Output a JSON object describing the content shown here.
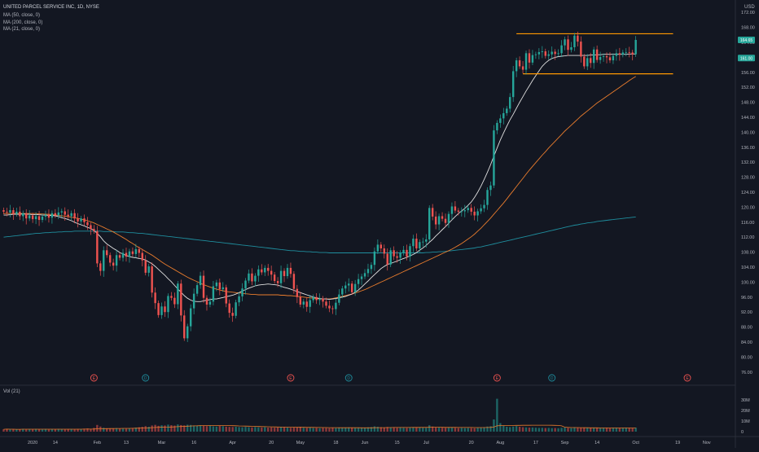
{
  "legend": {
    "symbol": "UNITED PARCEL SERVICE INC, 1D, NYSE",
    "ma_lines": [
      "MA (50, close, 0)",
      "MA (200, close, 0)",
      "MA (21, close, 0)"
    ],
    "currency": "USD",
    "volume_label": "Vol (21)"
  },
  "price_badges": [
    "164.65",
    "161.00"
  ],
  "chart_data": {
    "type": "candlestick",
    "title": "UNITED PARCEL SERVICE INC, 1D, NYSE",
    "y_ticks": [
      172,
      168,
      164,
      160,
      156,
      152,
      148,
      144,
      140,
      136,
      132,
      128,
      124,
      120,
      116,
      112,
      108,
      104,
      100,
      96,
      92,
      88,
      84,
      80,
      76
    ],
    "ylim": [
      74,
      174
    ],
    "volume_ticks": [
      "30M",
      "20M",
      "10M",
      "0"
    ],
    "volume_ylim": [
      0,
      33
    ],
    "x_ticks": [
      {
        "label": "2020",
        "idx": 9
      },
      {
        "label": "14",
        "idx": 16
      },
      {
        "label": "Feb",
        "idx": 29
      },
      {
        "label": "13",
        "idx": 38
      },
      {
        "label": "Mar",
        "idx": 49
      },
      {
        "label": "16",
        "idx": 59
      },
      {
        "label": "Apr",
        "idx": 71
      },
      {
        "label": "20",
        "idx": 83
      },
      {
        "label": "May",
        "idx": 92
      },
      {
        "label": "18",
        "idx": 103
      },
      {
        "label": "Jun",
        "idx": 112
      },
      {
        "label": "15",
        "idx": 122
      },
      {
        "label": "Jul",
        "idx": 131
      },
      {
        "label": "20",
        "idx": 145
      },
      {
        "label": "Aug",
        "idx": 154
      },
      {
        "label": "17",
        "idx": 165
      },
      {
        "label": "Sep",
        "idx": 174
      },
      {
        "label": "14",
        "idx": 184
      },
      {
        "label": "Oct",
        "idx": 196
      },
      {
        "label": "19",
        "idx": 209
      },
      {
        "label": "Nov",
        "idx": 218
      }
    ],
    "events": [
      {
        "type": "E",
        "idx": 28
      },
      {
        "type": "D",
        "idx": 44
      },
      {
        "type": "E",
        "idx": 89
      },
      {
        "type": "D",
        "idx": 107
      },
      {
        "type": "E",
        "idx": 153
      },
      {
        "type": "D",
        "idx": 170
      },
      {
        "type": "E",
        "idx": 212
      }
    ],
    "range_lines": [
      {
        "price": 166.3,
        "from_idx": 159,
        "to_idx": 200
      },
      {
        "price": 155.6,
        "from_idx": 161,
        "to_idx": 200
      }
    ],
    "colors": {
      "up": "#26a69a",
      "down": "#ef5350",
      "ma50": "#e97c2d",
      "ma200": "#1f8e9e",
      "ma21": "#e0e0e0",
      "range": "#ff9800"
    },
    "close": [
      118.8,
      118.6,
      119.2,
      118.2,
      118.8,
      117.6,
      118.4,
      117.0,
      117.8,
      116.8,
      117.6,
      116.6,
      117.5,
      118.0,
      117.2,
      118.4,
      117.8,
      118.6,
      118.9,
      118.0,
      117.6,
      118.4,
      117.0,
      116.2,
      117.0,
      116.0,
      115.2,
      114.2,
      113.6,
      105.0,
      103.0,
      108.5,
      107.2,
      105.2,
      104.4,
      107.2,
      106.5,
      107.8,
      106.8,
      108.2,
      107.5,
      108.8,
      107.8,
      105.8,
      102.5,
      104.2,
      97.2,
      94.4,
      91.2,
      93.5,
      92.0,
      96.3,
      95.8,
      94.1,
      99.6,
      91.1,
      85.0,
      88.2,
      93.0,
      96.9,
      99.2,
      101.7,
      95.8,
      94.0,
      94.8,
      98.9,
      99.9,
      98.1,
      98.6,
      94.3,
      91.8,
      91.0,
      94.6,
      96.2,
      98.3,
      100.4,
      102.3,
      100.2,
      101.7,
      103.4,
      102.6,
      103.8,
      103.0,
      102.0,
      100.3,
      99.7,
      103.0,
      101.6,
      103.8,
      102.2,
      98.2,
      96.0,
      94.0,
      94.8,
      93.4,
      95.2,
      96.0,
      95.2,
      95.6,
      94.8,
      93.7,
      93.0,
      92.8,
      94.5,
      96.7,
      98.3,
      99.1,
      99.6,
      97.3,
      99.5,
      100.8,
      101.5,
      102.4,
      103.5,
      104.6,
      108.2,
      110.0,
      109.0,
      107.6,
      104.7,
      108.5,
      106.9,
      106.5,
      107.8,
      108.6,
      106.8,
      109.6,
      111.6,
      109.0,
      110.7,
      110.8,
      111.4,
      119.8,
      117.5,
      115.4,
      117.6,
      116.9,
      115.8,
      118.2,
      120.2,
      119.1,
      118.8,
      118.9,
      119.2,
      119.8,
      118.8,
      117.8,
      118.9,
      119.7,
      120.6,
      124.6,
      125.8,
      140.5,
      142.5,
      143.7,
      145.1,
      146.3,
      149.4,
      156.3,
      159.2,
      157.6,
      156.7,
      161.1,
      158.6,
      160.6,
      160.8,
      161.4,
      161.6,
      160.4,
      160.8,
      161.5,
      160.9,
      161.1,
      163.2,
      164.8,
      162.0,
      162.7,
      165.8,
      164.2,
      160.2,
      157.6,
      159.8,
      158.5,
      162.1,
      159.3,
      160.1,
      160.3,
      160.0,
      159.2,
      160.4,
      161.1,
      160.7,
      161.3,
      161.4,
      161.3,
      160.8,
      164.65
    ],
    "ma21": [
      117.9,
      117.9,
      118.0,
      118.1,
      118.1,
      118.1,
      118.2,
      118.1,
      118.1,
      118.0,
      118.0,
      118.0,
      117.9,
      117.9,
      117.8,
      117.8,
      117.7,
      117.5,
      117.2,
      117.0,
      116.7,
      116.4,
      116.0,
      115.6,
      115.3,
      115.0,
      114.6,
      114.3,
      113.8,
      113.0,
      112.1,
      111.0,
      110.2,
      109.6,
      109.0,
      108.5,
      107.9,
      107.5,
      107.1,
      106.8,
      106.6,
      106.5,
      106.3,
      106.2,
      105.9,
      105.4,
      104.9,
      104.2,
      103.4,
      102.6,
      101.8,
      100.9,
      100.1,
      99.1,
      98.2,
      97.3,
      96.4,
      95.7,
      95.2,
      94.9,
      94.8,
      94.8,
      95.0,
      95.2,
      95.3,
      95.5,
      95.5,
      95.7,
      95.9,
      96.1,
      96.3,
      96.5,
      96.8,
      97.2,
      97.6,
      98.0,
      98.4,
      98.7,
      99.0,
      99.2,
      99.3,
      99.4,
      99.5,
      99.4,
      99.3,
      99.2,
      98.9,
      98.6,
      98.4,
      98.1,
      97.8,
      97.5,
      97.2,
      96.9,
      96.6,
      96.3,
      96.0,
      95.8,
      95.6,
      95.5,
      95.5,
      95.4,
      95.5,
      95.6,
      95.8,
      96.0,
      96.2,
      96.5,
      96.8,
      97.3,
      97.9,
      98.7,
      99.5,
      100.3,
      101.2,
      102.0,
      102.8,
      103.6,
      104.2,
      104.7,
      105.0,
      105.3,
      105.6,
      106.0,
      106.3,
      106.6,
      107.0,
      107.4,
      107.9,
      108.5,
      109.1,
      109.8,
      110.6,
      111.4,
      112.3,
      113.1,
      114.0,
      114.8,
      115.7,
      116.6,
      117.5,
      118.3,
      119.0,
      119.7,
      120.5,
      121.4,
      122.6,
      124.0,
      125.6,
      127.4,
      129.3,
      131.4,
      133.6,
      135.8,
      137.9,
      139.8,
      141.6,
      143.3,
      144.8,
      146.4,
      148.0,
      149.5,
      151.0,
      152.4,
      153.8,
      155.1,
      156.4,
      157.6,
      158.5,
      159.2,
      159.7,
      160.0,
      160.2,
      160.3,
      160.4,
      160.5,
      160.5,
      160.5,
      160.5,
      160.5,
      160.5,
      160.5,
      160.6,
      160.6,
      160.7,
      160.7,
      160.8,
      160.8,
      160.8,
      160.8,
      160.8,
      160.8,
      160.8,
      160.8,
      160.9,
      160.9,
      160.9
    ],
    "ma50": [
      118.3,
      118.3,
      118.3,
      118.3,
      118.3,
      118.3,
      118.3,
      118.3,
      118.3,
      118.3,
      118.3,
      118.2,
      118.2,
      118.1,
      118.1,
      118.0,
      117.9,
      117.8,
      117.7,
      117.6,
      117.5,
      117.3,
      117.2,
      117.0,
      116.8,
      116.6,
      116.4,
      116.1,
      115.8,
      115.4,
      115.0,
      114.6,
      114.2,
      113.8,
      113.4,
      112.9,
      112.4,
      111.9,
      111.4,
      110.8,
      110.3,
      109.7,
      109.2,
      108.7,
      108.2,
      107.7,
      107.2,
      106.6,
      106.0,
      105.4,
      104.8,
      104.3,
      103.8,
      103.3,
      102.8,
      102.3,
      101.8,
      101.3,
      100.9,
      100.5,
      100.1,
      99.7,
      99.3,
      99.0,
      98.7,
      98.4,
      98.1,
      97.9,
      97.7,
      97.5,
      97.4,
      97.3,
      97.2,
      97.1,
      97.0,
      96.9,
      96.8,
      96.7,
      96.7,
      96.6,
      96.6,
      96.6,
      96.6,
      96.6,
      96.6,
      96.6,
      96.5,
      96.5,
      96.4,
      96.4,
      96.3,
      96.2,
      96.1,
      96.0,
      95.9,
      95.8,
      95.7,
      95.6,
      95.5,
      95.5,
      95.5,
      95.5,
      95.6,
      95.8,
      96.0,
      96.2,
      96.4,
      96.6,
      96.8,
      97.1,
      97.4,
      97.7,
      98.0,
      98.4,
      98.8,
      99.2,
      99.6,
      100.0,
      100.4,
      100.8,
      101.2,
      101.6,
      102.0,
      102.4,
      102.8,
      103.2,
      103.6,
      104.0,
      104.4,
      104.8,
      105.2,
      105.6,
      106.0,
      106.4,
      106.8,
      107.2,
      107.6,
      108.0,
      108.4,
      108.8,
      109.3,
      109.8,
      110.3,
      110.9,
      111.5,
      112.1,
      112.8,
      113.6,
      114.4,
      115.3,
      116.2,
      117.1,
      118.1,
      119.1,
      120.1,
      121.1,
      122.2,
      123.3,
      124.4,
      125.5,
      126.6,
      127.7,
      128.8,
      129.9,
      130.9,
      131.9,
      132.9,
      133.9,
      134.8,
      135.8,
      136.7,
      137.6,
      138.5,
      139.4,
      140.3,
      141.1,
      141.9,
      142.7,
      143.5,
      144.3,
      145.0,
      145.7,
      146.4,
      147.1,
      147.8,
      148.4,
      149.0,
      149.6,
      150.2,
      150.8,
      151.4,
      152.0,
      152.6,
      153.2,
      153.8,
      154.4,
      154.9
    ],
    "ma200": [
      112.0,
      112.1,
      112.2,
      112.3,
      112.4,
      112.5,
      112.6,
      112.7,
      112.8,
      112.9,
      113.0,
      113.0,
      113.1,
      113.2,
      113.2,
      113.3,
      113.3,
      113.4,
      113.4,
      113.5,
      113.5,
      113.5,
      113.6,
      113.6,
      113.6,
      113.6,
      113.6,
      113.6,
      113.6,
      113.6,
      113.6,
      113.5,
      113.5,
      113.5,
      113.5,
      113.4,
      113.4,
      113.4,
      113.3,
      113.2,
      113.2,
      113.1,
      113.0,
      113.0,
      112.9,
      112.8,
      112.7,
      112.6,
      112.5,
      112.4,
      112.3,
      112.2,
      112.1,
      112.0,
      111.9,
      111.8,
      111.7,
      111.6,
      111.5,
      111.4,
      111.3,
      111.2,
      111.1,
      111.0,
      110.9,
      110.8,
      110.7,
      110.6,
      110.5,
      110.4,
      110.3,
      110.2,
      110.1,
      110.0,
      109.9,
      109.8,
      109.7,
      109.6,
      109.5,
      109.4,
      109.3,
      109.2,
      109.1,
      109.0,
      108.9,
      108.8,
      108.7,
      108.6,
      108.5,
      108.4,
      108.4,
      108.3,
      108.2,
      108.2,
      108.1,
      108.1,
      108.0,
      108.0,
      107.9,
      107.9,
      107.9,
      107.8,
      107.8,
      107.8,
      107.8,
      107.8,
      107.8,
      107.8,
      107.8,
      107.8,
      107.8,
      107.8,
      107.8,
      107.8,
      107.8,
      107.8,
      107.8,
      107.8,
      107.8,
      107.8,
      107.8,
      107.8,
      107.8,
      107.8,
      107.8,
      107.8,
      107.8,
      107.8,
      107.8,
      107.8,
      107.8,
      107.9,
      107.9,
      108.0,
      108.0,
      108.1,
      108.1,
      108.2,
      108.3,
      108.4,
      108.5,
      108.6,
      108.7,
      108.8,
      108.9,
      109.0,
      109.1,
      109.3,
      109.4,
      109.6,
      109.8,
      110.0,
      110.2,
      110.4,
      110.6,
      110.8,
      111.0,
      111.2,
      111.4,
      111.6,
      111.8,
      112.0,
      112.2,
      112.4,
      112.6,
      112.8,
      113.0,
      113.2,
      113.4,
      113.6,
      113.8,
      114.0,
      114.2,
      114.4,
      114.6,
      114.8,
      115.0,
      115.2,
      115.3,
      115.5,
      115.6,
      115.8,
      115.9,
      116.0,
      116.2,
      116.3,
      116.4,
      116.5,
      116.6,
      116.7,
      116.8,
      116.9,
      117.0,
      117.1,
      117.2,
      117.3,
      117.4
    ],
    "volume_M": [
      2.2,
      2.5,
      2.1,
      2.4,
      2.0,
      2.3,
      2.6,
      2.1,
      2.4,
      2.2,
      2.6,
      2.3,
      2.1,
      2.5,
      2.0,
      2.4,
      2.2,
      2.6,
      2.3,
      2.1,
      2.5,
      2.4,
      2.2,
      2.6,
      2.3,
      2.8,
      3.1,
      2.7,
      3.5,
      6.3,
      4.8,
      3.6,
      3.2,
      3.0,
      2.8,
      3.3,
      3.0,
      2.9,
      2.7,
      3.1,
      3.4,
      3.8,
      4.1,
      4.5,
      5.2,
      4.6,
      5.8,
      6.4,
      5.5,
      6.0,
      5.8,
      6.6,
      6.1,
      5.7,
      6.8,
      6.2,
      5.9,
      6.5,
      6.3,
      5.8,
      5.6,
      6.0,
      5.4,
      5.2,
      5.5,
      5.0,
      4.8,
      5.3,
      5.1,
      4.7,
      4.5,
      4.4,
      4.6,
      4.3,
      4.1,
      4.5,
      4.2,
      4.0,
      4.4,
      4.1,
      3.9,
      4.2,
      3.8,
      4.0,
      3.7,
      3.9,
      4.3,
      4.1,
      3.8,
      3.6,
      4.2,
      3.9,
      4.6,
      3.7,
      3.5,
      3.8,
      3.4,
      3.6,
      3.3,
      3.5,
      3.4,
      3.2,
      3.6,
      3.3,
      3.7,
      3.5,
      3.8,
      4.0,
      3.6,
      3.4,
      3.7,
      3.9,
      3.5,
      4.1,
      4.3,
      5.0,
      4.6,
      4.2,
      3.9,
      4.4,
      4.0,
      3.8,
      3.6,
      3.9,
      3.7,
      3.5,
      3.8,
      4.2,
      3.9,
      4.1,
      3.7,
      3.6,
      6.0,
      4.8,
      4.2,
      3.9,
      3.7,
      3.6,
      3.8,
      4.0,
      3.5,
      3.4,
      3.6,
      3.3,
      3.5,
      3.4,
      3.2,
      3.6,
      3.8,
      4.2,
      4.8,
      5.1,
      11.5,
      31.0,
      8.0,
      5.5,
      4.6,
      4.3,
      4.8,
      5.2,
      4.6,
      4.2,
      4.0,
      3.8,
      3.9,
      3.7,
      3.5,
      3.6,
      3.4,
      3.5,
      3.3,
      3.4,
      3.2,
      3.6,
      3.9,
      3.5,
      3.3,
      4.1,
      3.8,
      3.6,
      3.9,
      3.5,
      3.4,
      3.7,
      3.5,
      3.3,
      3.4,
      3.6,
      3.2,
      3.5,
      3.6,
      3.3,
      3.4,
      3.5,
      3.3,
      3.2,
      3.8
    ]
  }
}
